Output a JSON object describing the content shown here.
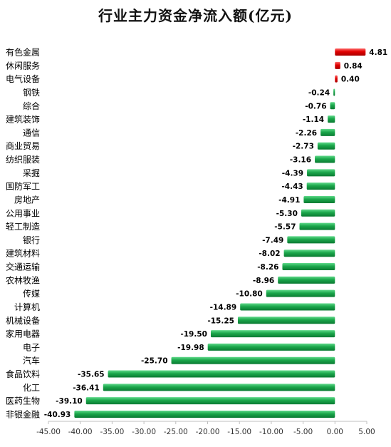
{
  "chart_data": {
    "type": "bar",
    "orientation": "horizontal",
    "title": "行业主力资金净流入额(亿元)",
    "xlabel": "",
    "ylabel": "",
    "xlim": [
      -45,
      5
    ],
    "xticks": [
      -45,
      -40,
      -35,
      -30,
      -25,
      -20,
      -15,
      -10,
      -5,
      0,
      5
    ],
    "xtick_labels": [
      "-45.00",
      "-40.00",
      "-35.00",
      "-30.00",
      "-25.00",
      "-20.00",
      "-15.00",
      "-10.00",
      "-5.00",
      "0.00",
      "5.00"
    ],
    "grid": false,
    "legend": "none",
    "colors": {
      "positive": "#e00000",
      "negative": "#1aa64a"
    },
    "categories": [
      "有色金属",
      "休闲服务",
      "电气设备",
      "钢铁",
      "综合",
      "建筑装饰",
      "通信",
      "商业贸易",
      "纺织服装",
      "采掘",
      "国防军工",
      "房地产",
      "公用事业",
      "轻工制造",
      "银行",
      "建筑材料",
      "交通运输",
      "农林牧渔",
      "传媒",
      "计算机",
      "机械设备",
      "家用电器",
      "电子",
      "汽车",
      "食品饮料",
      "化工",
      "医药生物",
      "非银金融"
    ],
    "values": [
      4.81,
      0.84,
      0.4,
      -0.24,
      -0.76,
      -1.14,
      -2.26,
      -2.73,
      -3.16,
      -4.39,
      -4.43,
      -4.91,
      -5.3,
      -5.57,
      -7.49,
      -8.02,
      -8.26,
      -8.96,
      -10.8,
      -14.89,
      -15.25,
      -19.5,
      -19.98,
      -25.7,
      -35.65,
      -36.41,
      -39.1,
      -40.93
    ],
    "value_labels": [
      "4.81",
      "0.84",
      "0.40",
      "-0.24",
      "-0.76",
      "-1.14",
      "-2.26",
      "-2.73",
      "-3.16",
      "-4.39",
      "-4.43",
      "-4.91",
      "-5.30",
      "-5.57",
      "-7.49",
      "-8.02",
      "-8.26",
      "-8.96",
      "-10.80",
      "-14.89",
      "-15.25",
      "-19.50",
      "-19.98",
      "-25.70",
      "-35.65",
      "-36.41",
      "-39.10",
      "-40.93"
    ]
  }
}
